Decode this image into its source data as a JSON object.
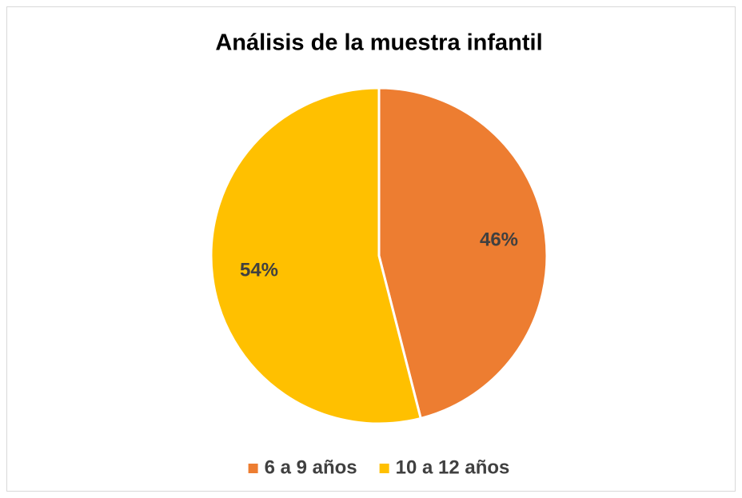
{
  "chart_data": {
    "type": "pie",
    "title": "Análisis de la muestra infantil",
    "categories": [
      "6 a 9 años",
      "10 a 12 años"
    ],
    "values": [
      46,
      54
    ],
    "value_labels": [
      "46%",
      "54%"
    ],
    "colors": [
      "#ed7d31",
      "#ffc000"
    ],
    "legend": "bottom"
  }
}
